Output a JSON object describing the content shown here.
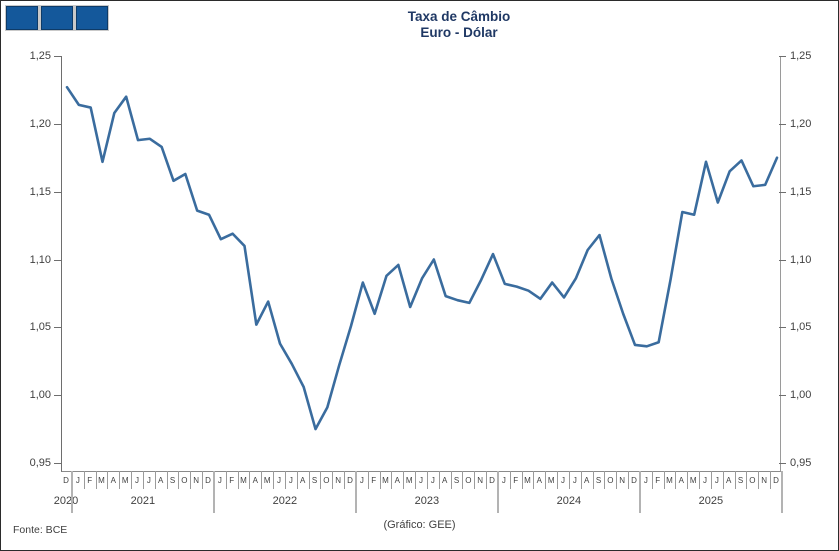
{
  "logo": {
    "squares": 3,
    "square_color": "#14589B",
    "border_color": "#0E3B68"
  },
  "title": {
    "line1": "Taxa de Câmbio",
    "line2": "Euro - Dólar",
    "color": "#1F3864"
  },
  "footer": {
    "source": "Fonte: BCE",
    "credit": "(Gráfico: GEE)"
  },
  "chart_data": {
    "type": "line",
    "title": "Taxa de Câmbio Euro - Dólar",
    "series_label": "Euro - Dólar",
    "line_color": "#3A6C9E",
    "grid": false,
    "legend": "none",
    "ylim": [
      0.95,
      1.25
    ],
    "y_ticks": [
      {
        "v": 1.25,
        "label": "1,25"
      },
      {
        "v": 1.2,
        "label": "1,20"
      },
      {
        "v": 1.15,
        "label": "1,15"
      },
      {
        "v": 1.1,
        "label": "1,10"
      },
      {
        "v": 1.05,
        "label": "1,05"
      },
      {
        "v": 1.0,
        "label": "1,00"
      },
      {
        "v": 0.95,
        "label": "0,95"
      }
    ],
    "years": [
      {
        "label": "2020",
        "start_month_index": 0,
        "end_month_index": 0
      },
      {
        "label": "2021",
        "start_month_index": 1,
        "end_month_index": 12
      },
      {
        "label": "2022",
        "start_month_index": 13,
        "end_month_index": 24
      },
      {
        "label": "2023",
        "start_month_index": 25,
        "end_month_index": 36
      },
      {
        "label": "2024",
        "start_month_index": 37,
        "end_month_index": 48
      },
      {
        "label": "2025",
        "start_month_index": 49,
        "end_month_index": 60
      }
    ],
    "month_letters": [
      "D",
      "J",
      "F",
      "M",
      "A",
      "M",
      "J",
      "J",
      "A",
      "S",
      "O",
      "N",
      "D",
      "J",
      "F",
      "M",
      "A",
      "M",
      "J",
      "J",
      "A",
      "S",
      "O",
      "N",
      "D",
      "J",
      "F",
      "M",
      "A",
      "M",
      "J",
      "J",
      "A",
      "S",
      "O",
      "N",
      "D",
      "J",
      "F",
      "M",
      "A",
      "M",
      "J",
      "J",
      "A",
      "S",
      "O",
      "N",
      "D",
      "J",
      "F",
      "M",
      "A",
      "M",
      "J",
      "J",
      "A",
      "S",
      "O",
      "N",
      "D"
    ],
    "x": [
      "2020-12",
      "2021-01",
      "2021-02",
      "2021-03",
      "2021-04",
      "2021-05",
      "2021-06",
      "2021-07",
      "2021-08",
      "2021-09",
      "2021-10",
      "2021-11",
      "2021-12",
      "2022-01",
      "2022-02",
      "2022-03",
      "2022-04",
      "2022-05",
      "2022-06",
      "2022-07",
      "2022-08",
      "2022-09",
      "2022-10",
      "2022-11",
      "2022-12",
      "2023-01",
      "2023-02",
      "2023-03",
      "2023-04",
      "2023-05",
      "2023-06",
      "2023-07",
      "2023-08",
      "2023-09",
      "2023-10",
      "2023-11",
      "2023-12",
      "2024-01",
      "2024-02",
      "2024-03",
      "2024-04",
      "2024-05",
      "2024-06",
      "2024-07",
      "2024-08",
      "2024-09",
      "2024-10",
      "2024-11",
      "2024-12",
      "2025-01",
      "2025-02",
      "2025-03",
      "2025-04",
      "2025-05",
      "2025-06",
      "2025-07",
      "2025-08",
      "2025-09",
      "2025-10",
      "2025-11",
      "2025-12"
    ],
    "values": [
      1.227,
      1.214,
      1.212,
      1.172,
      1.208,
      1.22,
      1.188,
      1.189,
      1.183,
      1.158,
      1.163,
      1.136,
      1.133,
      1.115,
      1.119,
      1.11,
      1.052,
      1.069,
      1.038,
      1.023,
      1.006,
      0.975,
      0.991,
      1.022,
      1.051,
      1.083,
      1.06,
      1.088,
      1.096,
      1.065,
      1.086,
      1.1,
      1.073,
      1.07,
      1.068,
      1.085,
      1.104,
      1.082,
      1.08,
      1.077,
      1.071,
      1.083,
      1.072,
      1.086,
      1.107,
      1.118,
      1.086,
      1.06,
      1.037,
      1.036,
      1.039,
      1.085,
      1.135,
      1.133,
      1.172,
      1.142,
      1.165,
      1.173,
      1.154,
      1.155,
      1.175
    ]
  }
}
